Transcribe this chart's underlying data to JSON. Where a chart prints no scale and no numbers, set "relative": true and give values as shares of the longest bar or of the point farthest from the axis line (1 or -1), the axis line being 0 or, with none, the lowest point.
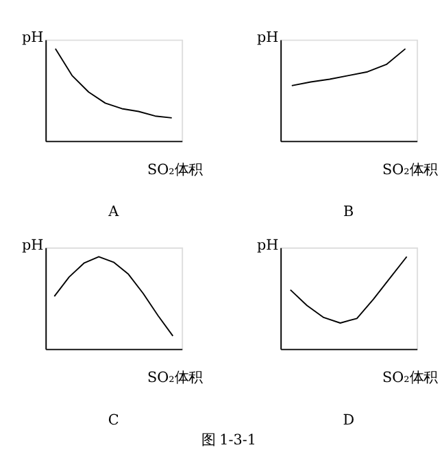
{
  "chart_data": [
    {
      "type": "line",
      "title": "A",
      "xlabel": "SO₂体积",
      "ylabel": "pH",
      "relative": true,
      "tick_labels": false,
      "grid": false,
      "categories": [
        null,
        null,
        null,
        null,
        null,
        null,
        null,
        null
      ],
      "series": [
        {
          "color": "#000000",
          "values": [
            1,
            0.71,
            0.53,
            0.41,
            0.35,
            0.32,
            0.27,
            0.25
          ]
        }
      ]
    },
    {
      "type": "line",
      "title": "B",
      "xlabel": "SO₂体积",
      "ylabel": "pH",
      "relative": true,
      "tick_labels": false,
      "grid": false,
      "categories": [
        null,
        null,
        null,
        null,
        null,
        null,
        null
      ],
      "series": [
        {
          "color": "#000000",
          "values": [
            0.6,
            0.64,
            0.67,
            0.71,
            0.75,
            0.83,
            1
          ]
        }
      ]
    },
    {
      "type": "line",
      "title": "C",
      "xlabel": "SO₂体积",
      "ylabel": "pH",
      "relative": true,
      "tick_labels": false,
      "grid": false,
      "categories": [
        null,
        null,
        null,
        null,
        null,
        null,
        null,
        null,
        null
      ],
      "series": [
        {
          "color": "#000000",
          "values": [
            0.57,
            0.78,
            0.93,
            1,
            0.94,
            0.81,
            0.6,
            0.36,
            0.14
          ]
        }
      ]
    },
    {
      "type": "line",
      "title": "D",
      "xlabel": "SO₂体积",
      "ylabel": "pH",
      "relative": true,
      "tick_labels": false,
      "grid": false,
      "categories": [
        null,
        null,
        null,
        null,
        null,
        null,
        null,
        null
      ],
      "annotations": [
        "图 1-3-1"
      ],
      "series": [
        {
          "color": "#000000",
          "values": [
            0.64,
            0.47,
            0.34,
            0.28,
            0.33,
            0.54,
            0.77,
            1
          ]
        }
      ]
    }
  ]
}
